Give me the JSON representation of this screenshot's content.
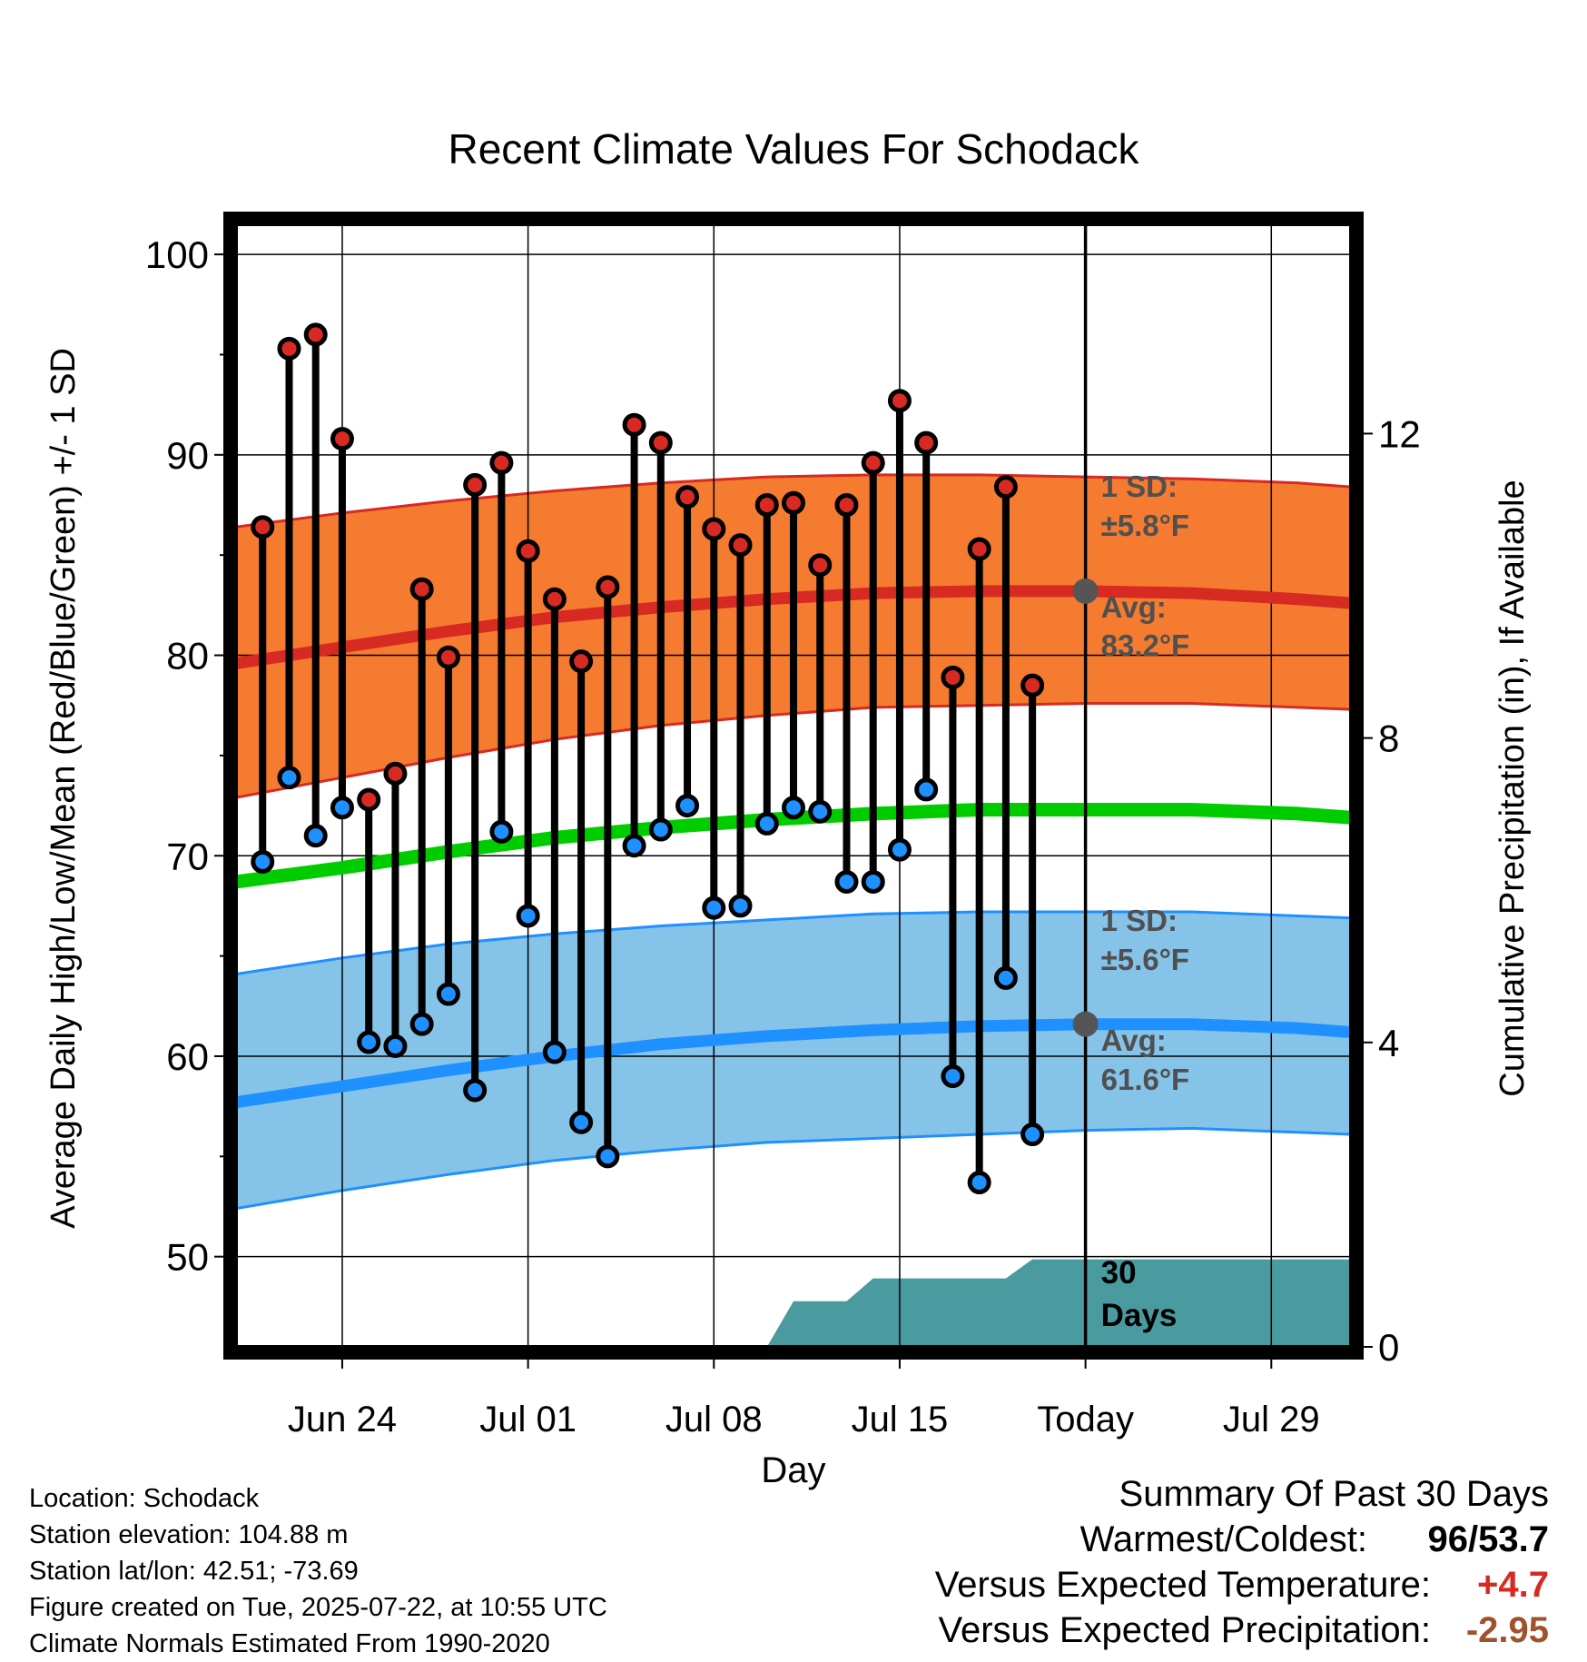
{
  "chart_data": {
    "type": "line",
    "title": "Recent Climate Values For Schodack",
    "xlabel": "Day",
    "ylabel": "Average Daily High/Low/Mean (Red/Blue/Green) +/- 1 SD",
    "y2label": "Cumulative Precipitation (in), If Available",
    "ylim": [
      45.5,
      101.5
    ],
    "y2lim": [
      0,
      14.75
    ],
    "yticks": [
      50,
      60,
      70,
      80,
      90,
      100
    ],
    "y2ticks": [
      0,
      4,
      8,
      12
    ],
    "xlim": [
      "2025-06-20",
      "2025-08-01"
    ],
    "xticks": [
      {
        "date": "2025-06-24",
        "label": "Jun 24"
      },
      {
        "date": "2025-07-01",
        "label": "Jul 01"
      },
      {
        "date": "2025-07-08",
        "label": "Jul 08"
      },
      {
        "date": "2025-07-15",
        "label": "Jul 15"
      },
      {
        "date": "2025-07-22",
        "label": "Today"
      },
      {
        "date": "2025-07-29",
        "label": "Jul 29"
      }
    ],
    "today": "2025-07-22",
    "grid": true,
    "daily": {
      "dates": [
        "2025-06-21",
        "2025-06-22",
        "2025-06-23",
        "2025-06-24",
        "2025-06-25",
        "2025-06-26",
        "2025-06-27",
        "2025-06-28",
        "2025-06-29",
        "2025-06-30",
        "2025-07-01",
        "2025-07-02",
        "2025-07-03",
        "2025-07-04",
        "2025-07-05",
        "2025-07-06",
        "2025-07-07",
        "2025-07-08",
        "2025-07-09",
        "2025-07-10",
        "2025-07-11",
        "2025-07-12",
        "2025-07-13",
        "2025-07-14",
        "2025-07-15",
        "2025-07-16",
        "2025-07-17",
        "2025-07-18",
        "2025-07-19",
        "2025-07-20",
        "2025-07-21"
      ],
      "high": [
        86.4,
        95.3,
        96.0,
        90.8,
        72.8,
        74.1,
        83.3,
        79.9,
        88.5,
        89.6,
        85.2,
        82.8,
        79.7,
        83.4,
        91.5,
        90.6,
        87.9,
        86.3,
        85.5,
        87.5,
        87.6,
        84.5,
        87.5,
        89.6,
        92.7,
        90.6,
        78.9,
        85.3,
        88.4,
        78.5,
        null
      ],
      "low": [
        69.7,
        73.9,
        71.0,
        72.4,
        60.7,
        60.5,
        61.6,
        63.1,
        58.3,
        71.2,
        67.0,
        60.2,
        56.7,
        55.0,
        70.5,
        71.3,
        72.5,
        67.4,
        67.5,
        71.6,
        72.4,
        72.2,
        68.7,
        68.7,
        70.3,
        73.3,
        59.0,
        53.7,
        63.9,
        56.1,
        null
      ]
    },
    "normals": {
      "dates": [
        "2025-06-20",
        "2025-06-24",
        "2025-06-28",
        "2025-07-02",
        "2025-07-06",
        "2025-07-10",
        "2025-07-14",
        "2025-07-18",
        "2025-07-22",
        "2025-07-26",
        "2025-07-30",
        "2025-08-01"
      ],
      "avg_high": [
        79.6,
        80.4,
        81.2,
        81.9,
        82.4,
        82.8,
        83.1,
        83.2,
        83.2,
        83.1,
        82.8,
        82.6
      ],
      "high_sd_upper": [
        86.4,
        87.1,
        87.7,
        88.2,
        88.6,
        88.9,
        89.0,
        89.0,
        88.9,
        88.8,
        88.6,
        88.4
      ],
      "high_sd_lower": [
        72.9,
        73.9,
        74.9,
        75.8,
        76.5,
        77.0,
        77.4,
        77.5,
        77.6,
        77.6,
        77.4,
        77.3
      ],
      "avg_mean": [
        68.7,
        69.4,
        70.2,
        70.9,
        71.4,
        71.8,
        72.1,
        72.3,
        72.3,
        72.3,
        72.1,
        71.9
      ],
      "avg_low": [
        57.7,
        58.5,
        59.3,
        60.0,
        60.6,
        61.0,
        61.3,
        61.5,
        61.6,
        61.6,
        61.4,
        61.2
      ],
      "low_sd_upper": [
        64.1,
        64.9,
        65.6,
        66.1,
        66.5,
        66.8,
        67.1,
        67.2,
        67.2,
        67.2,
        67.0,
        66.9
      ],
      "low_sd_lower": [
        52.4,
        53.3,
        54.1,
        54.8,
        55.3,
        55.7,
        55.9,
        56.1,
        56.3,
        56.4,
        56.2,
        56.1
      ]
    },
    "precipitation": {
      "dates": [
        "2025-06-20",
        "2025-07-10",
        "2025-07-11",
        "2025-07-13",
        "2025-07-14",
        "2025-07-19",
        "2025-07-20",
        "2025-08-01"
      ],
      "cumulative": [
        0.0,
        0.0,
        0.6,
        0.6,
        0.9,
        0.9,
        1.15,
        1.15
      ]
    },
    "annotations": {
      "high_sd_label": "1 SD:",
      "high_sd_value": "±5.8°F",
      "high_avg_label": "Avg:",
      "high_avg_value": "83.2°F",
      "low_sd_label": "1 SD:",
      "low_sd_value": "±5.6°F",
      "low_avg_label": "Avg:",
      "low_avg_value": "61.6°F",
      "days_number": "30",
      "days_word": "Days"
    },
    "colors": {
      "high_band": "#f47b2f",
      "high_line": "#d62a22",
      "mean_line": "#00cc00",
      "low_band": "#86c3e8",
      "low_line": "#1e90ff",
      "precip": "#4a9ba0",
      "high_marker": "#d62a22",
      "low_marker": "#1e90ff",
      "annotation": "#505050"
    }
  },
  "info": {
    "location": "Location: Schodack",
    "elevation": "Station elevation: 104.88 m",
    "latlon": "Station lat/lon: 42.51; -73.69",
    "created": "Figure created on Tue, 2025-07-22, at 10:55 UTC",
    "normals": "Climate Normals Estimated From 1990-2020"
  },
  "summary": {
    "title": "Summary Of Past 30 Days",
    "warmest_label": "Warmest/Coldest:",
    "warmest_value": "96",
    "coldest_value": "53.7",
    "temp_label": "Versus Expected Temperature:",
    "temp_value": "+4.7",
    "temp_color": "#d62a22",
    "precip_label": "Versus Expected Precipitation:",
    "precip_value": "-2.95",
    "precip_color": "#a0522d"
  }
}
